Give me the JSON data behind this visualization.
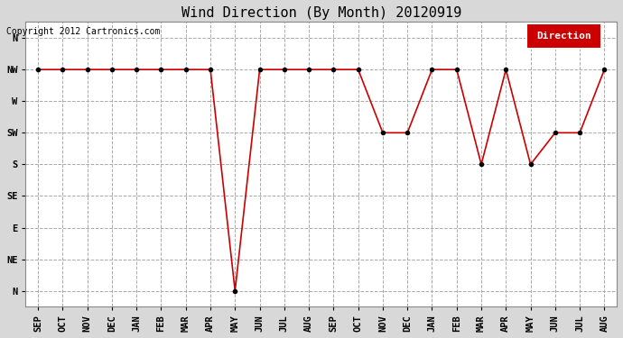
{
  "title": "Wind Direction (By Month) 20120919",
  "copyright_text": "Copyright 2012 Cartronics.com",
  "legend_label": "Direction",
  "x_labels": [
    "SEP",
    "OCT",
    "NOV",
    "DEC",
    "JAN",
    "FEB",
    "MAR",
    "APR",
    "MAY",
    "JUN",
    "JUL",
    "AUG",
    "SEP",
    "OCT",
    "NOV",
    "DEC",
    "JAN",
    "FEB",
    "MAR",
    "APR",
    "MAY",
    "JUN",
    "JUL",
    "AUG"
  ],
  "y_tick_positions": [
    8,
    7,
    6,
    5,
    4,
    3,
    2,
    1,
    0
  ],
  "y_labels": [
    "N",
    "NW",
    "W",
    "SW",
    "S",
    "SE",
    "E",
    "NE",
    "N"
  ],
  "data_values": [
    7,
    7,
    7,
    7,
    7,
    7,
    7,
    7,
    0,
    7,
    7,
    7,
    7,
    7,
    5,
    5,
    7,
    7,
    4,
    7,
    4,
    5,
    5,
    7
  ],
  "line_color": "#cc0000",
  "marker_color": "#000000",
  "bg_color": "#d8d8d8",
  "plot_bg_color": "#ffffff",
  "grid_color": "#aaaaaa",
  "legend_bg": "#cc0000",
  "legend_text_color": "#ffffff",
  "title_fontsize": 11,
  "tick_fontsize": 7.5,
  "copyright_fontsize": 7
}
